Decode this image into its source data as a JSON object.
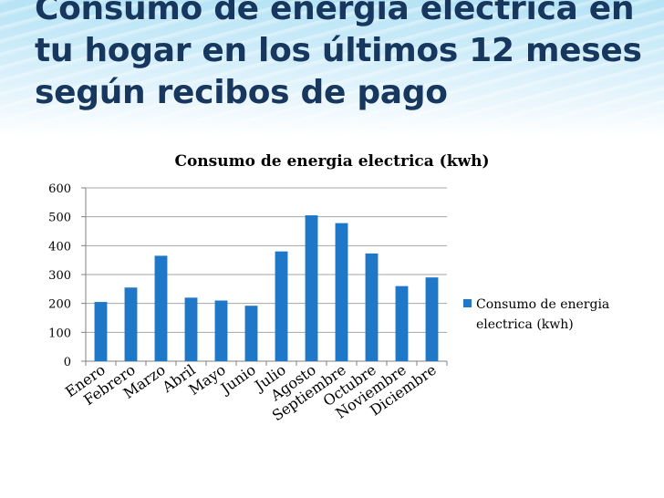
{
  "slide": {
    "title_lines": [
      "Consumo de energía eléctrica en",
      "tu hogar en los últimos 12 meses",
      "según recibos de pago"
    ]
  },
  "chart_data": {
    "type": "bar",
    "title": "Consumo de energia electrica (kwh)",
    "categories": [
      "Enero",
      "Febrero",
      "Marzo",
      "Abril",
      "Mayo",
      "Junio",
      "Julio",
      "Agosto",
      "Septiembre",
      "Octubre",
      "Noviembre",
      "Diciembre"
    ],
    "series": [
      {
        "name": "Consumo de energia electrica (kwh)",
        "legend_lines": [
          "Consumo de energia",
          "electrica (kwh)"
        ],
        "values": [
          205,
          255,
          365,
          220,
          210,
          192,
          380,
          505,
          478,
          373,
          260,
          290
        ],
        "color": "#1f77c8"
      }
    ],
    "ylim": [
      0,
      600
    ],
    "yticks": [
      0,
      100,
      200,
      300,
      400,
      500,
      600
    ],
    "grid": true,
    "legend_position": "right",
    "xlabel": "",
    "ylabel": ""
  }
}
